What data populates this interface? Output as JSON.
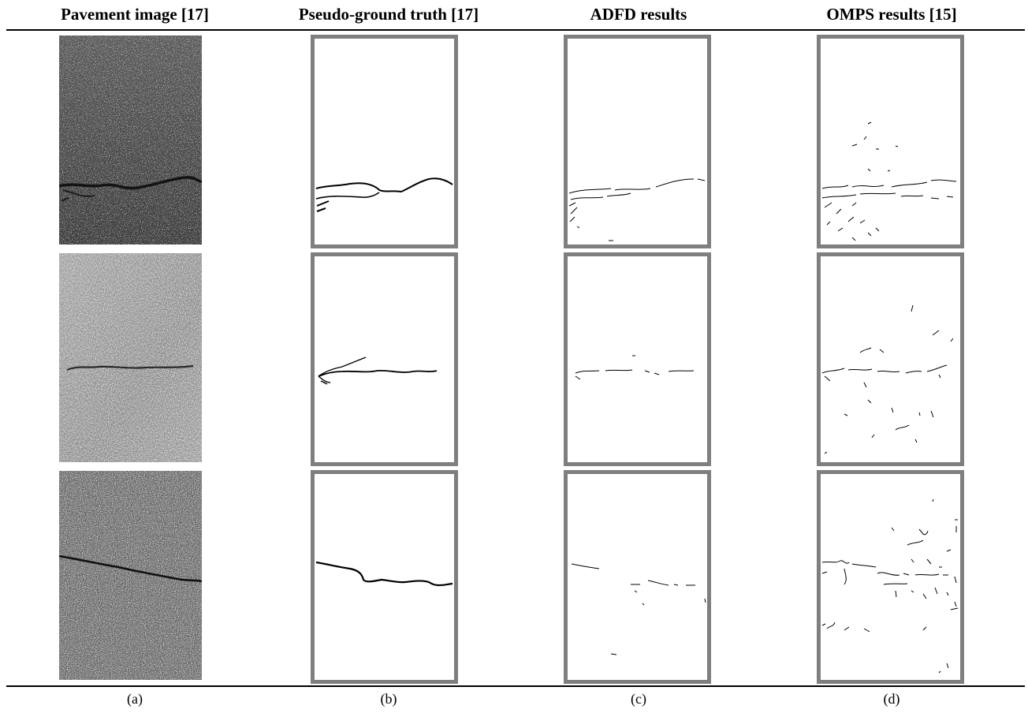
{
  "headers": [
    {
      "name": "col-header-pavement",
      "text": "Pavement image [17]"
    },
    {
      "name": "col-header-ground-truth",
      "text": "Pseudo-ground truth [17]"
    },
    {
      "name": "col-header-adfd",
      "text": "ADFD results"
    },
    {
      "name": "col-header-omps",
      "text": "OMPS results [15]"
    }
  ],
  "captions": [
    "(a)",
    "(b)",
    "(c)",
    "(d)"
  ],
  "colors": {
    "frame_border": "#7f7f7f",
    "crack_ink": "#000000",
    "rule": "#000000"
  },
  "rows": [
    {
      "photo_tone": "dark-speckled"
    },
    {
      "photo_tone": "light-grainy"
    },
    {
      "photo_tone": "dark-coarse"
    }
  ]
}
